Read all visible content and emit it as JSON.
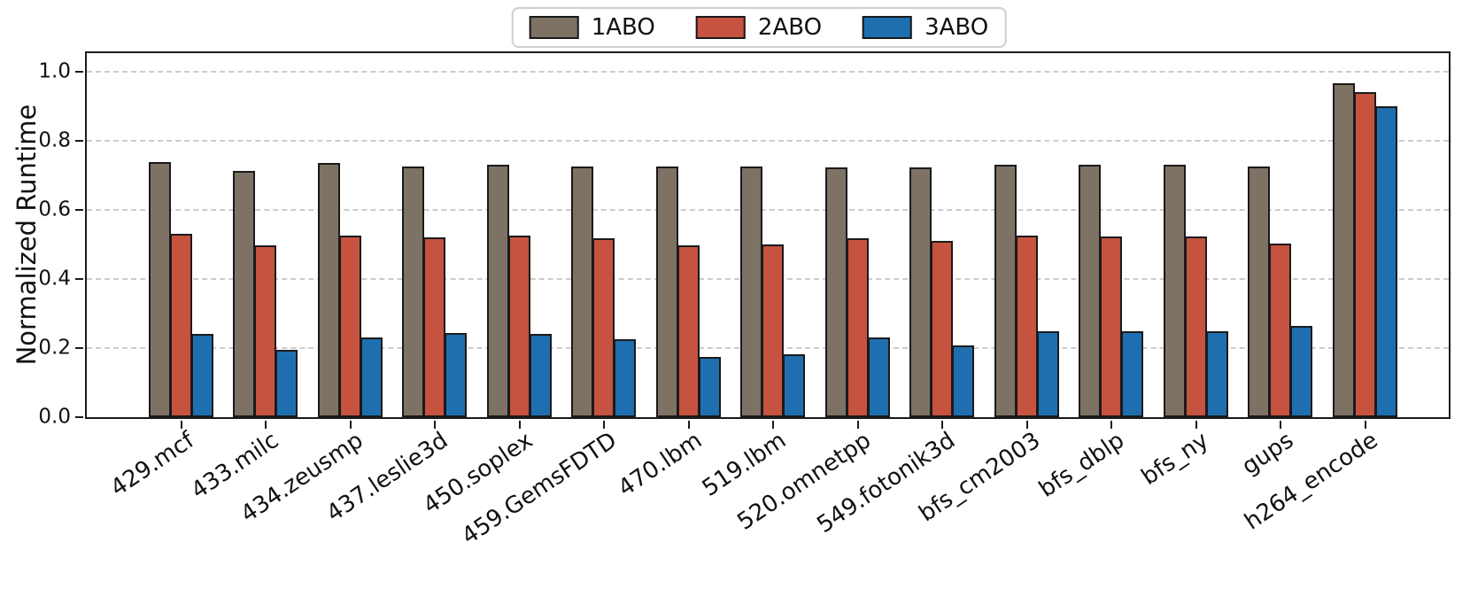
{
  "chart_data": {
    "type": "bar",
    "title": "",
    "xlabel": "",
    "ylabel": "Normalized Runtime",
    "ylim": [
      0,
      1.064
    ],
    "yticks": [
      0.0,
      0.2,
      0.4,
      0.6,
      0.8,
      1.0
    ],
    "grid": "horizontal dashed",
    "legend_position": "top center",
    "bar_edge_color": "#1a1a1a",
    "categories": [
      "429.mcf",
      "433.milc",
      "434.zeusmp",
      "437.leslie3d",
      "450.soplex",
      "459.GemsFDTD",
      "470.lbm",
      "519.lbm",
      "520.omnetpp",
      "549.fotonik3d",
      "bfs_cm2003",
      "bfs_dblp",
      "bfs_ny",
      "gups",
      "h264_encode"
    ],
    "series": [
      {
        "name": "1ABO",
        "color": "#7e7265",
        "values": [
          0.732,
          0.707,
          0.73,
          0.721,
          0.725,
          0.721,
          0.72,
          0.72,
          0.718,
          0.718,
          0.725,
          0.725,
          0.726,
          0.72,
          0.962
        ]
      },
      {
        "name": "2ABO",
        "color": "#c65240",
        "values": [
          0.526,
          0.492,
          0.521,
          0.514,
          0.519,
          0.512,
          0.491,
          0.495,
          0.512,
          0.505,
          0.519,
          0.517,
          0.517,
          0.496,
          0.934
        ]
      },
      {
        "name": "3ABO",
        "color": "#1f6fb0",
        "values": [
          0.236,
          0.19,
          0.226,
          0.239,
          0.236,
          0.221,
          0.17,
          0.176,
          0.225,
          0.203,
          0.243,
          0.244,
          0.243,
          0.259,
          0.894
        ]
      }
    ]
  }
}
